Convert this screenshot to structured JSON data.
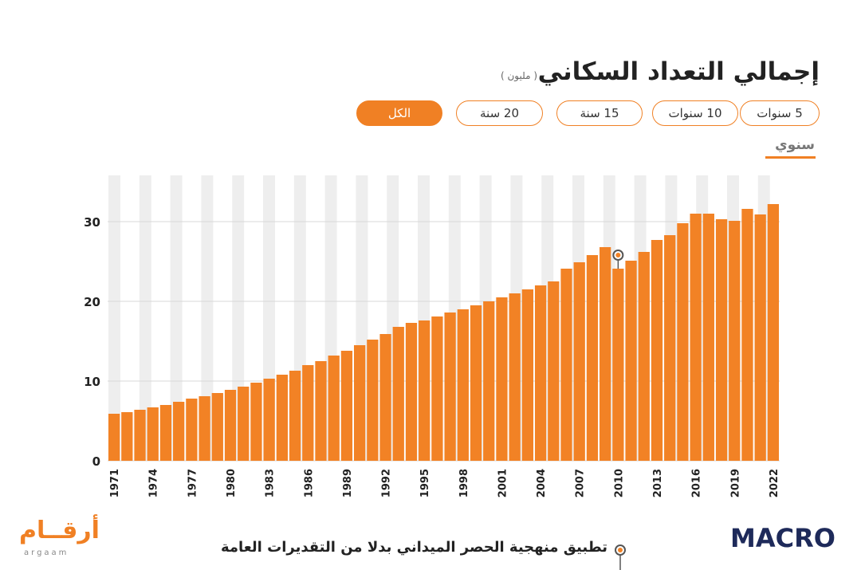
{
  "header": {
    "title": "إجمالي التعداد السكاني",
    "unit": "( مليون )",
    "buttons": [
      {
        "label": "5 سنوات",
        "active": false
      },
      {
        "label": "10 سنوات",
        "active": false
      },
      {
        "label": "15 سنة",
        "active": false
      },
      {
        "label": "20 سنة",
        "active": false
      },
      {
        "label": "الكل",
        "active": true
      }
    ],
    "tab": "سنوي"
  },
  "chart_data": {
    "type": "bar",
    "categories": [
      "1971",
      null,
      null,
      "1974",
      null,
      null,
      "1977",
      null,
      null,
      "1980",
      null,
      null,
      "1983",
      null,
      null,
      "1986",
      null,
      null,
      "1989",
      null,
      null,
      "1992",
      null,
      null,
      "1995",
      null,
      null,
      "1998",
      null,
      null,
      "2001",
      null,
      null,
      "2004",
      null,
      null,
      "2007",
      null,
      null,
      "2010",
      null,
      null,
      "2013",
      null,
      null,
      "2016",
      null,
      null,
      "2019",
      null,
      null,
      "2022"
    ],
    "values": [
      5.9,
      6.1,
      6.4,
      6.7,
      7.0,
      7.4,
      7.8,
      8.1,
      8.5,
      8.9,
      9.3,
      9.8,
      10.3,
      10.8,
      11.3,
      12.0,
      12.5,
      13.2,
      13.8,
      14.5,
      15.2,
      15.9,
      16.8,
      17.3,
      17.6,
      18.1,
      18.6,
      19.0,
      19.5,
      20.0,
      20.5,
      21.0,
      21.5,
      22.0,
      22.5,
      24.1,
      24.9,
      25.8,
      26.8,
      24.1,
      25.1,
      26.2,
      27.7,
      28.3,
      29.8,
      31.0,
      31.0,
      30.3,
      30.1,
      31.6,
      30.9,
      32.2
    ],
    "color": "#f28225",
    "ylim": [
      0,
      35.8
    ],
    "yticks": [
      0,
      10,
      20,
      30
    ],
    "grid": true,
    "annotation": {
      "text": "تطبيق منهجية الحصر الميداني بدلا من التقديرات العامة",
      "x": "2010"
    }
  },
  "footer": {
    "logo_left": "أرقــام",
    "logo_left_sub": "argaam",
    "logo_right": "MACRO"
  }
}
